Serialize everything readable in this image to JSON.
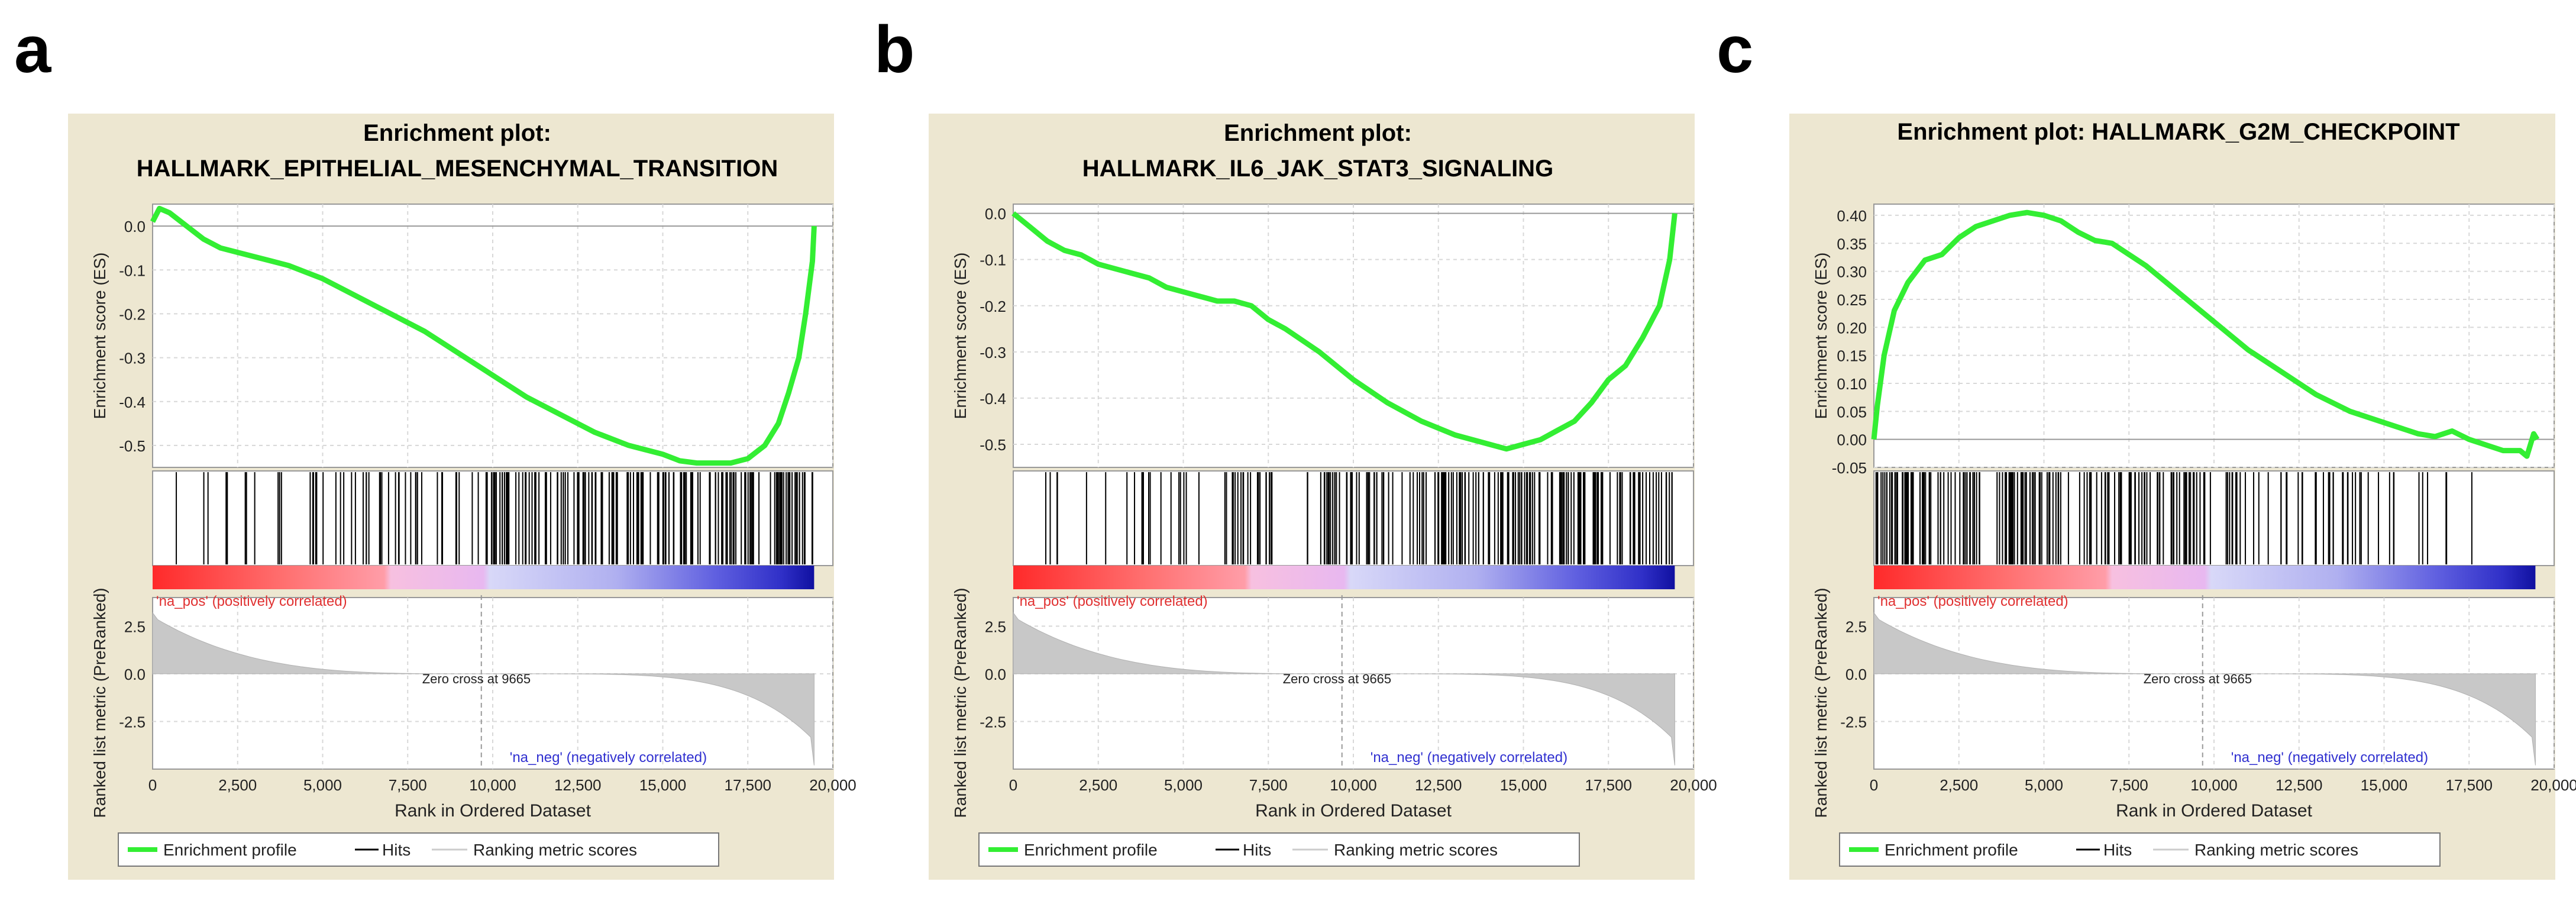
{
  "colors": {
    "panel_bg": "#ede7d1",
    "plot_bg": "#ffffff",
    "enrichment_line": "#33ee33",
    "hits": "#000000",
    "metric_fill": "#c8c8c8",
    "pos_label": "#e03030",
    "neg_label": "#3030d0",
    "grid": "#d8d8d8"
  },
  "chart_data": [
    {
      "type": "line",
      "panel": "a",
      "title": [
        "Enrichment plot:",
        "HALLMARK_EPITHELIAL_MESENCHYMAL_TRANSITION"
      ],
      "es_ylabel": "Enrichment score (ES)",
      "metric_ylabel": "Ranked list metric (PreRanked)",
      "xlabel": "Rank in Ordered Dataset",
      "xlim": [
        0,
        20000
      ],
      "x_ticks": [
        "0",
        "2,500",
        "5,000",
        "7,500",
        "10,000",
        "12,500",
        "15,000",
        "17,500",
        "20,000"
      ],
      "es_ylim": [
        -0.55,
        0.05
      ],
      "es_ticks": [
        "0.0",
        "-0.1",
        "-0.2",
        "-0.3",
        "-0.4",
        "-0.5"
      ],
      "metric_ylim": [
        -5,
        4
      ],
      "metric_ticks": [
        "2.5",
        "0.0",
        "-2.5"
      ],
      "zero_cross": 9665,
      "zero_cross_label": "Zero cross at 9665",
      "pos_label": "'na_pos' (positively correlated)",
      "neg_label": "'na_neg' (negatively correlated)",
      "legend": [
        "Enrichment profile",
        "Hits",
        "Ranking metric scores"
      ],
      "es_curve": {
        "x": [
          0,
          200,
          500,
          1000,
          1500,
          2000,
          2500,
          3000,
          3500,
          4000,
          5000,
          6000,
          7000,
          8000,
          9000,
          10000,
          11000,
          12000,
          13000,
          14000,
          15000,
          15500,
          16000,
          16500,
          17000,
          17500,
          18000,
          18400,
          18700,
          19000,
          19200,
          19400,
          19450
        ],
        "y": [
          0.01,
          0.04,
          0.03,
          0.0,
          -0.03,
          -0.05,
          -0.06,
          -0.07,
          -0.08,
          -0.09,
          -0.12,
          -0.16,
          -0.2,
          -0.24,
          -0.29,
          -0.34,
          -0.39,
          -0.43,
          -0.47,
          -0.5,
          -0.52,
          -0.535,
          -0.54,
          -0.54,
          -0.54,
          -0.53,
          -0.5,
          -0.45,
          -0.38,
          -0.3,
          -0.2,
          -0.08,
          0.0
        ]
      }
    },
    {
      "type": "line",
      "panel": "b",
      "title": [
        "Enrichment plot:",
        "HALLMARK_IL6_JAK_STAT3_SIGNALING"
      ],
      "es_ylabel": "Enrichment score (ES)",
      "metric_ylabel": "Ranked list metric (PreRanked)",
      "xlabel": "Rank in Ordered Dataset",
      "xlim": [
        0,
        20000
      ],
      "x_ticks": [
        "0",
        "2,500",
        "5,000",
        "7,500",
        "10,000",
        "12,500",
        "15,000",
        "17,500",
        "20,000"
      ],
      "es_ylim": [
        -0.55,
        0.02
      ],
      "es_ticks": [
        "0.0",
        "-0.1",
        "-0.2",
        "-0.3",
        "-0.4",
        "-0.5"
      ],
      "metric_ylim": [
        -5,
        4
      ],
      "metric_ticks": [
        "2.5",
        "0.0",
        "-2.5"
      ],
      "zero_cross": 9665,
      "zero_cross_label": "Zero cross at 9665",
      "pos_label": "'na_pos' (positively correlated)",
      "neg_label": "'na_neg' (negatively correlated)",
      "legend": [
        "Enrichment profile",
        "Hits",
        "Ranking metric scores"
      ],
      "es_curve": {
        "x": [
          0,
          500,
          1000,
          1500,
          2000,
          2500,
          3000,
          3500,
          4000,
          4500,
          5000,
          5500,
          6000,
          6500,
          7000,
          7500,
          8000,
          9000,
          10000,
          11000,
          12000,
          13000,
          14000,
          14500,
          15000,
          15500,
          16000,
          16500,
          17000,
          17500,
          18000,
          18500,
          19000,
          19300,
          19450
        ],
        "y": [
          0.0,
          -0.03,
          -0.06,
          -0.08,
          -0.09,
          -0.11,
          -0.12,
          -0.13,
          -0.14,
          -0.16,
          -0.17,
          -0.18,
          -0.19,
          -0.19,
          -0.2,
          -0.23,
          -0.25,
          -0.3,
          -0.36,
          -0.41,
          -0.45,
          -0.48,
          -0.5,
          -0.51,
          -0.5,
          -0.49,
          -0.47,
          -0.45,
          -0.41,
          -0.36,
          -0.33,
          -0.27,
          -0.2,
          -0.1,
          0.0
        ]
      }
    },
    {
      "type": "line",
      "panel": "c",
      "title": [
        "Enrichment plot: HALLMARK_G2M_CHECKPOINT"
      ],
      "es_ylabel": "Enrichment score (ES)",
      "metric_ylabel": "Ranked list metric (PreRanked)",
      "xlabel": "Rank in Ordered Dataset",
      "xlim": [
        0,
        20000
      ],
      "x_ticks": [
        "0",
        "2,500",
        "5,000",
        "7,500",
        "10,000",
        "12,500",
        "15,000",
        "17,500",
        "20,000"
      ],
      "es_ylim": [
        -0.05,
        0.42
      ],
      "es_ticks": [
        "0.40",
        "0.35",
        "0.30",
        "0.25",
        "0.20",
        "0.15",
        "0.10",
        "0.05",
        "0.00",
        "-0.05"
      ],
      "metric_ylim": [
        -5,
        4
      ],
      "metric_ticks": [
        "2.5",
        "0.0",
        "-2.5"
      ],
      "zero_cross": 9665,
      "zero_cross_label": "Zero cross at 9665",
      "pos_label": "'na_pos' (positively correlated)",
      "neg_label": "'na_neg' (negatively correlated)",
      "legend": [
        "Enrichment profile",
        "Hits",
        "Ranking metric scores"
      ],
      "es_curve": {
        "x": [
          0,
          100,
          300,
          600,
          1000,
          1500,
          2000,
          2500,
          3000,
          3500,
          4000,
          4500,
          5000,
          5500,
          6000,
          6500,
          7000,
          8000,
          9000,
          10000,
          11000,
          12000,
          13000,
          14000,
          15000,
          16000,
          16500,
          17000,
          17500,
          18000,
          18500,
          19000,
          19200,
          19400,
          19500
        ],
        "y": [
          0.0,
          0.06,
          0.15,
          0.23,
          0.28,
          0.32,
          0.33,
          0.36,
          0.38,
          0.39,
          0.4,
          0.405,
          0.4,
          0.39,
          0.37,
          0.355,
          0.35,
          0.31,
          0.26,
          0.21,
          0.16,
          0.12,
          0.08,
          0.05,
          0.03,
          0.01,
          0.005,
          0.015,
          0.0,
          -0.01,
          -0.02,
          -0.02,
          -0.03,
          0.01,
          0.0
        ]
      }
    }
  ]
}
